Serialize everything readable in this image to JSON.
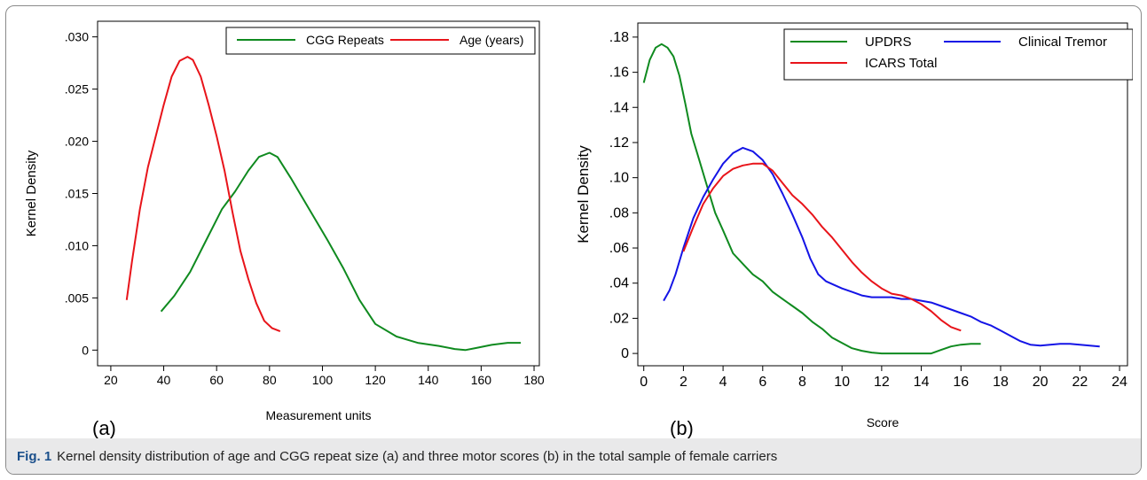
{
  "caption": {
    "label": "Fig. 1",
    "text": "Kernel density distribution of age and CGG repeat size (a) and three motor scores (b) in the total sample of female carriers"
  },
  "chart_data": [
    {
      "type": "line",
      "panel_label": "(a)",
      "xlabel": "Measurement units",
      "ylabel": "Kernel Density",
      "xlim": [
        15,
        182
      ],
      "ylim": [
        -0.0015,
        0.0315
      ],
      "xticks": [
        20,
        40,
        60,
        80,
        100,
        120,
        140,
        160,
        180
      ],
      "xtick_labels": [
        "20",
        "40",
        "60",
        "80",
        "100",
        "120",
        "140",
        "160",
        "180"
      ],
      "yticks": [
        0,
        0.005,
        0.01,
        0.015,
        0.02,
        0.025,
        0.03
      ],
      "ytick_labels": [
        "0",
        ".005",
        ".010",
        ".015",
        ".020",
        ".025",
        ".030"
      ],
      "grid": false,
      "legend_position": "top-right",
      "series": [
        {
          "name": "CGG Repeats",
          "color": "#0f8a1f",
          "x": [
            39,
            44,
            50,
            56,
            62,
            67,
            72,
            76,
            80,
            83,
            88,
            95,
            102,
            108,
            114,
            120,
            128,
            136,
            144,
            150,
            154,
            158,
            164,
            170,
            175
          ],
          "y": [
            0.0037,
            0.0052,
            0.0075,
            0.0105,
            0.0135,
            0.0152,
            0.0172,
            0.0185,
            0.0189,
            0.0185,
            0.0165,
            0.0135,
            0.0105,
            0.0078,
            0.0048,
            0.0025,
            0.0013,
            0.0007,
            0.0004,
            0.0001,
            0.0,
            0.0002,
            0.0005,
            0.0007,
            0.0007
          ]
        },
        {
          "name": "Age (years)",
          "color": "#e8141a",
          "x": [
            26,
            28,
            31,
            34,
            37,
            40,
            43,
            46,
            49,
            51,
            54,
            57,
            60,
            63,
            66,
            69,
            72,
            75,
            78,
            81,
            84
          ],
          "y": [
            0.0048,
            0.0085,
            0.0135,
            0.0175,
            0.0205,
            0.0235,
            0.0262,
            0.0277,
            0.0281,
            0.0278,
            0.0262,
            0.0235,
            0.0205,
            0.0172,
            0.0132,
            0.0095,
            0.0068,
            0.0045,
            0.0028,
            0.0021,
            0.0018
          ]
        }
      ]
    },
    {
      "type": "line",
      "panel_label": "(b)",
      "xlabel": "Score",
      "ylabel": "Kernel Density",
      "xlim": [
        -0.3,
        24.4
      ],
      "ylim": [
        -0.007,
        0.188
      ],
      "xticks": [
        0,
        2,
        4,
        6,
        8,
        10,
        12,
        14,
        16,
        18,
        20,
        22,
        24
      ],
      "xtick_labels": [
        "0",
        "2",
        "4",
        "6",
        "8",
        "10",
        "12",
        "14",
        "16",
        "18",
        "20",
        "22",
        "24"
      ],
      "yticks": [
        0,
        0.02,
        0.04,
        0.06,
        0.08,
        0.1,
        0.12,
        0.14,
        0.16,
        0.18
      ],
      "ytick_labels": [
        "0",
        ".02",
        ".04",
        ".06",
        ".08",
        ".10",
        ".12",
        ".14",
        ".16",
        ".18"
      ],
      "grid": false,
      "legend_position": "top",
      "series": [
        {
          "name": "UPDRS",
          "color": "#0f8a1f",
          "x": [
            0,
            0.3,
            0.6,
            0.9,
            1.2,
            1.5,
            1.8,
            2.1,
            2.4,
            2.8,
            3.2,
            3.6,
            4.0,
            4.5,
            5.0,
            5.5,
            6.0,
            6.5,
            7.0,
            7.5,
            8.0,
            8.5,
            9.0,
            9.5,
            10.0,
            10.5,
            11.0,
            11.5,
            12.0,
            12.5,
            13.0,
            13.5,
            14.0,
            14.5,
            15.0,
            15.5,
            16.0,
            16.5,
            17.0
          ],
          "y": [
            0.154,
            0.167,
            0.174,
            0.176,
            0.174,
            0.169,
            0.158,
            0.142,
            0.125,
            0.11,
            0.095,
            0.08,
            0.07,
            0.057,
            0.051,
            0.045,
            0.041,
            0.035,
            0.031,
            0.027,
            0.023,
            0.018,
            0.014,
            0.009,
            0.006,
            0.003,
            0.0015,
            0.0005,
            0.0,
            0.0,
            0.0,
            0.0,
            0.0,
            0.0,
            0.002,
            0.004,
            0.005,
            0.0055,
            0.0055
          ]
        },
        {
          "name": "Clinical Tremor",
          "color": "#1414e6",
          "x": [
            1.0,
            1.3,
            1.6,
            2.0,
            2.5,
            3.0,
            3.5,
            4.0,
            4.5,
            5.0,
            5.5,
            6.0,
            6.5,
            7.0,
            7.5,
            8.0,
            8.4,
            8.8,
            9.2,
            9.6,
            10.0,
            10.5,
            11.0,
            11.5,
            12.0,
            12.5,
            13.0,
            13.5,
            14.0,
            14.5,
            15.0,
            15.5,
            16.0,
            16.5,
            17.0,
            17.5,
            18.0,
            18.5,
            19.0,
            19.5,
            20.0,
            20.5,
            21.0,
            21.5,
            22.0,
            22.5,
            23.0
          ],
          "y": [
            0.03,
            0.036,
            0.045,
            0.06,
            0.077,
            0.089,
            0.099,
            0.108,
            0.114,
            0.117,
            0.115,
            0.11,
            0.102,
            0.091,
            0.079,
            0.066,
            0.054,
            0.045,
            0.041,
            0.039,
            0.037,
            0.035,
            0.033,
            0.032,
            0.032,
            0.032,
            0.031,
            0.031,
            0.03,
            0.029,
            0.027,
            0.025,
            0.023,
            0.021,
            0.018,
            0.016,
            0.013,
            0.01,
            0.007,
            0.005,
            0.0045,
            0.005,
            0.0055,
            0.0055,
            0.005,
            0.0045,
            0.004
          ]
        },
        {
          "name": "ICARS Total",
          "color": "#e8141a",
          "x": [
            2.0,
            2.5,
            3.0,
            3.5,
            4.0,
            4.5,
            5.0,
            5.5,
            6.0,
            6.5,
            7.0,
            7.5,
            8.0,
            8.5,
            9.0,
            9.5,
            10.0,
            10.5,
            11.0,
            11.5,
            12.0,
            12.5,
            13.0,
            13.5,
            14.0,
            14.5,
            15.0,
            15.5,
            16.0
          ],
          "y": [
            0.058,
            0.072,
            0.085,
            0.094,
            0.101,
            0.105,
            0.107,
            0.108,
            0.108,
            0.104,
            0.097,
            0.09,
            0.085,
            0.079,
            0.072,
            0.066,
            0.059,
            0.052,
            0.046,
            0.041,
            0.037,
            0.034,
            0.033,
            0.031,
            0.028,
            0.024,
            0.019,
            0.015,
            0.013
          ]
        }
      ]
    }
  ]
}
